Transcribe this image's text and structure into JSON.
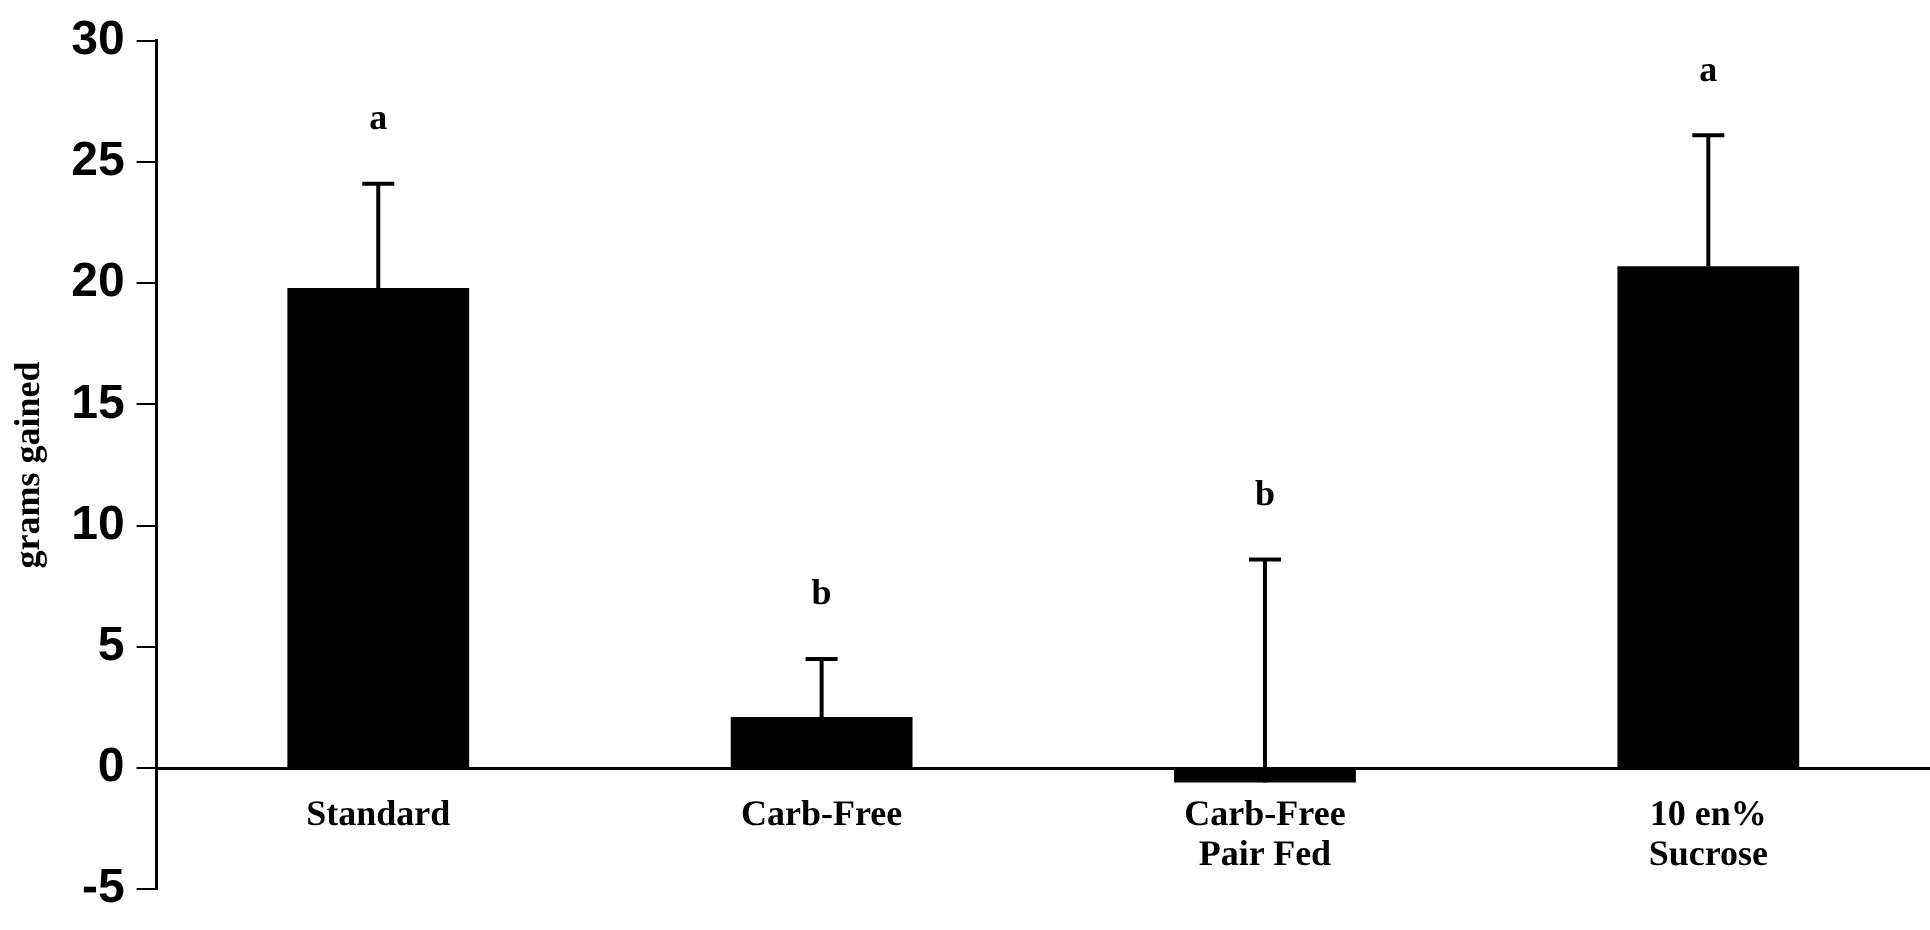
{
  "chart_data": {
    "type": "bar",
    "ylabel": "grams gained",
    "categories": [
      "Standard",
      "Carb-Free",
      "Carb-Free\nPair Fed",
      "10 en%\nSucrose"
    ],
    "values": [
      19.8,
      2.1,
      -0.6,
      20.7
    ],
    "errors": [
      [
        19.8,
        24.1
      ],
      [
        2.1,
        4.5
      ],
      [
        -0.6,
        8.6
      ],
      [
        20.7,
        26.1
      ]
    ],
    "color": "#000000",
    "ylim": [
      -5,
      30
    ],
    "yticks": [
      -5,
      0,
      5,
      10,
      15,
      20,
      25,
      30
    ],
    "grid": false,
    "legend": false,
    "annotations": [
      "a",
      "b",
      "b",
      "a"
    ]
  }
}
